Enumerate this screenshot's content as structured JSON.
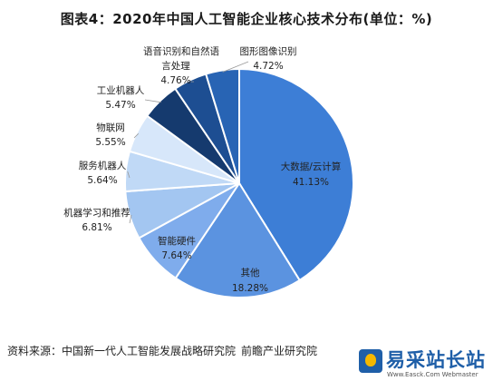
{
  "chart_data": {
    "type": "pie",
    "title": "图表4：2020年中国人工智能企业核心技术分布(单位：%)",
    "unit": "%",
    "slices": [
      {
        "name": "大数据/云计算",
        "value": 41.13,
        "color": "#3d7ed6"
      },
      {
        "name": "其他",
        "value": 18.28,
        "color": "#5b93e0"
      },
      {
        "name": "智能硬件",
        "value": 7.64,
        "color": "#7facec"
      },
      {
        "name": "机器学习和推荐",
        "value": 6.81,
        "color": "#a3c6f1"
      },
      {
        "name": "服务机器人",
        "value": 5.64,
        "color": "#c0d9f6"
      },
      {
        "name": "物联网",
        "value": 5.55,
        "color": "#d7e7fa"
      },
      {
        "name": "工业机器人",
        "value": 5.47,
        "color": "#153a6e"
      },
      {
        "name": "语音识别和自然语言处理",
        "value": 4.76,
        "color": "#1d4e92"
      },
      {
        "name": "图形图像识别",
        "value": 4.72,
        "color": "#2864b4"
      }
    ]
  },
  "labels": {
    "big_data": {
      "name": "大数据/云计算",
      "value": "41.13%"
    },
    "other": {
      "name": "其他",
      "value": "18.28%"
    },
    "hardware": {
      "name": "智能硬件",
      "value": "7.64%"
    },
    "ml": {
      "name": "机器学习和推荐",
      "value": "6.81%"
    },
    "service_robot": {
      "name": "服务机器人",
      "value": "5.64%"
    },
    "iot": {
      "name": "物联网",
      "value": "5.55%"
    },
    "industrial_robot": {
      "name": "工业机器人",
      "value": "5.47%"
    },
    "speech_line1": "语音识别和自然语",
    "speech_line2": "言处理",
    "speech_value": "4.76%",
    "image": {
      "name": "图形图像识别",
      "value": "4.72%"
    }
  },
  "source": {
    "prefix": "资料来源：",
    "org1": "中国新一代人工智能发展战略研究院",
    "org2": "前瞻产业研究院"
  },
  "logo": {
    "text": "易采站长站",
    "url": "Www.Easck.Com Webmaster"
  }
}
